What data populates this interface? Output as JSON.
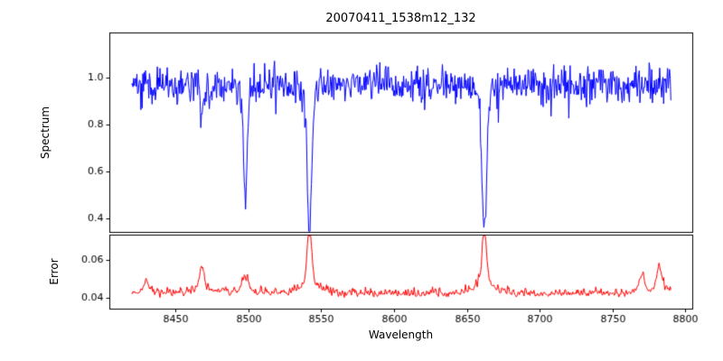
{
  "chart_data": {
    "type": "line",
    "title": "20070411_1538m12_132",
    "xlabel": "Wavelength",
    "background": "#ffffff",
    "spine_color": "#000000",
    "text_color": "#000000",
    "x_range": [
      8420,
      8790
    ],
    "xlim": [
      8405,
      8805
    ],
    "xticks": [
      8450,
      8500,
      8550,
      8600,
      8650,
      8700,
      8750,
      8800
    ],
    "grid": false,
    "legend": "none",
    "panels": [
      {
        "name": "spectrum",
        "ylabel": "Spectrum",
        "color": "#0000ff",
        "ylim": [
          0.34,
          1.19
        ],
        "yticks": [
          0.4,
          0.6,
          0.8,
          1.0
        ],
        "ytick_labels": [
          "0.4",
          "0.6",
          "0.8",
          "1.0"
        ],
        "baseline": 0.97,
        "noise_sigma": 0.038,
        "absorption_lines": [
          {
            "center": 8468,
            "depth": 0.12,
            "sigma": 1.2
          },
          {
            "center": 8498,
            "depth": 0.42,
            "sigma": 1.3
          },
          {
            "center": 8542,
            "depth": 0.6,
            "sigma": 1.6
          },
          {
            "center": 8662,
            "depth": 0.62,
            "sigma": 1.5
          }
        ]
      },
      {
        "name": "error",
        "ylabel": "Error",
        "color": "#ff0000",
        "ylim": [
          0.034,
          0.073
        ],
        "yticks": [
          0.04,
          0.06
        ],
        "ytick_labels": [
          "0.04",
          "0.06"
        ],
        "baseline": 0.042,
        "noise_sigma": 0.0012,
        "peaks": [
          {
            "center": 8430,
            "height": 0.006,
            "sigma": 1.5
          },
          {
            "center": 8468,
            "height": 0.013,
            "sigma": 1.5
          },
          {
            "center": 8498,
            "height": 0.007,
            "sigma": 2.0
          },
          {
            "center": 8542,
            "height": 0.028,
            "sigma": 1.6
          },
          {
            "center": 8662,
            "height": 0.03,
            "sigma": 1.5
          },
          {
            "center": 8770,
            "height": 0.008,
            "sigma": 2.0
          },
          {
            "center": 8782,
            "height": 0.012,
            "sigma": 1.5
          }
        ]
      }
    ]
  }
}
